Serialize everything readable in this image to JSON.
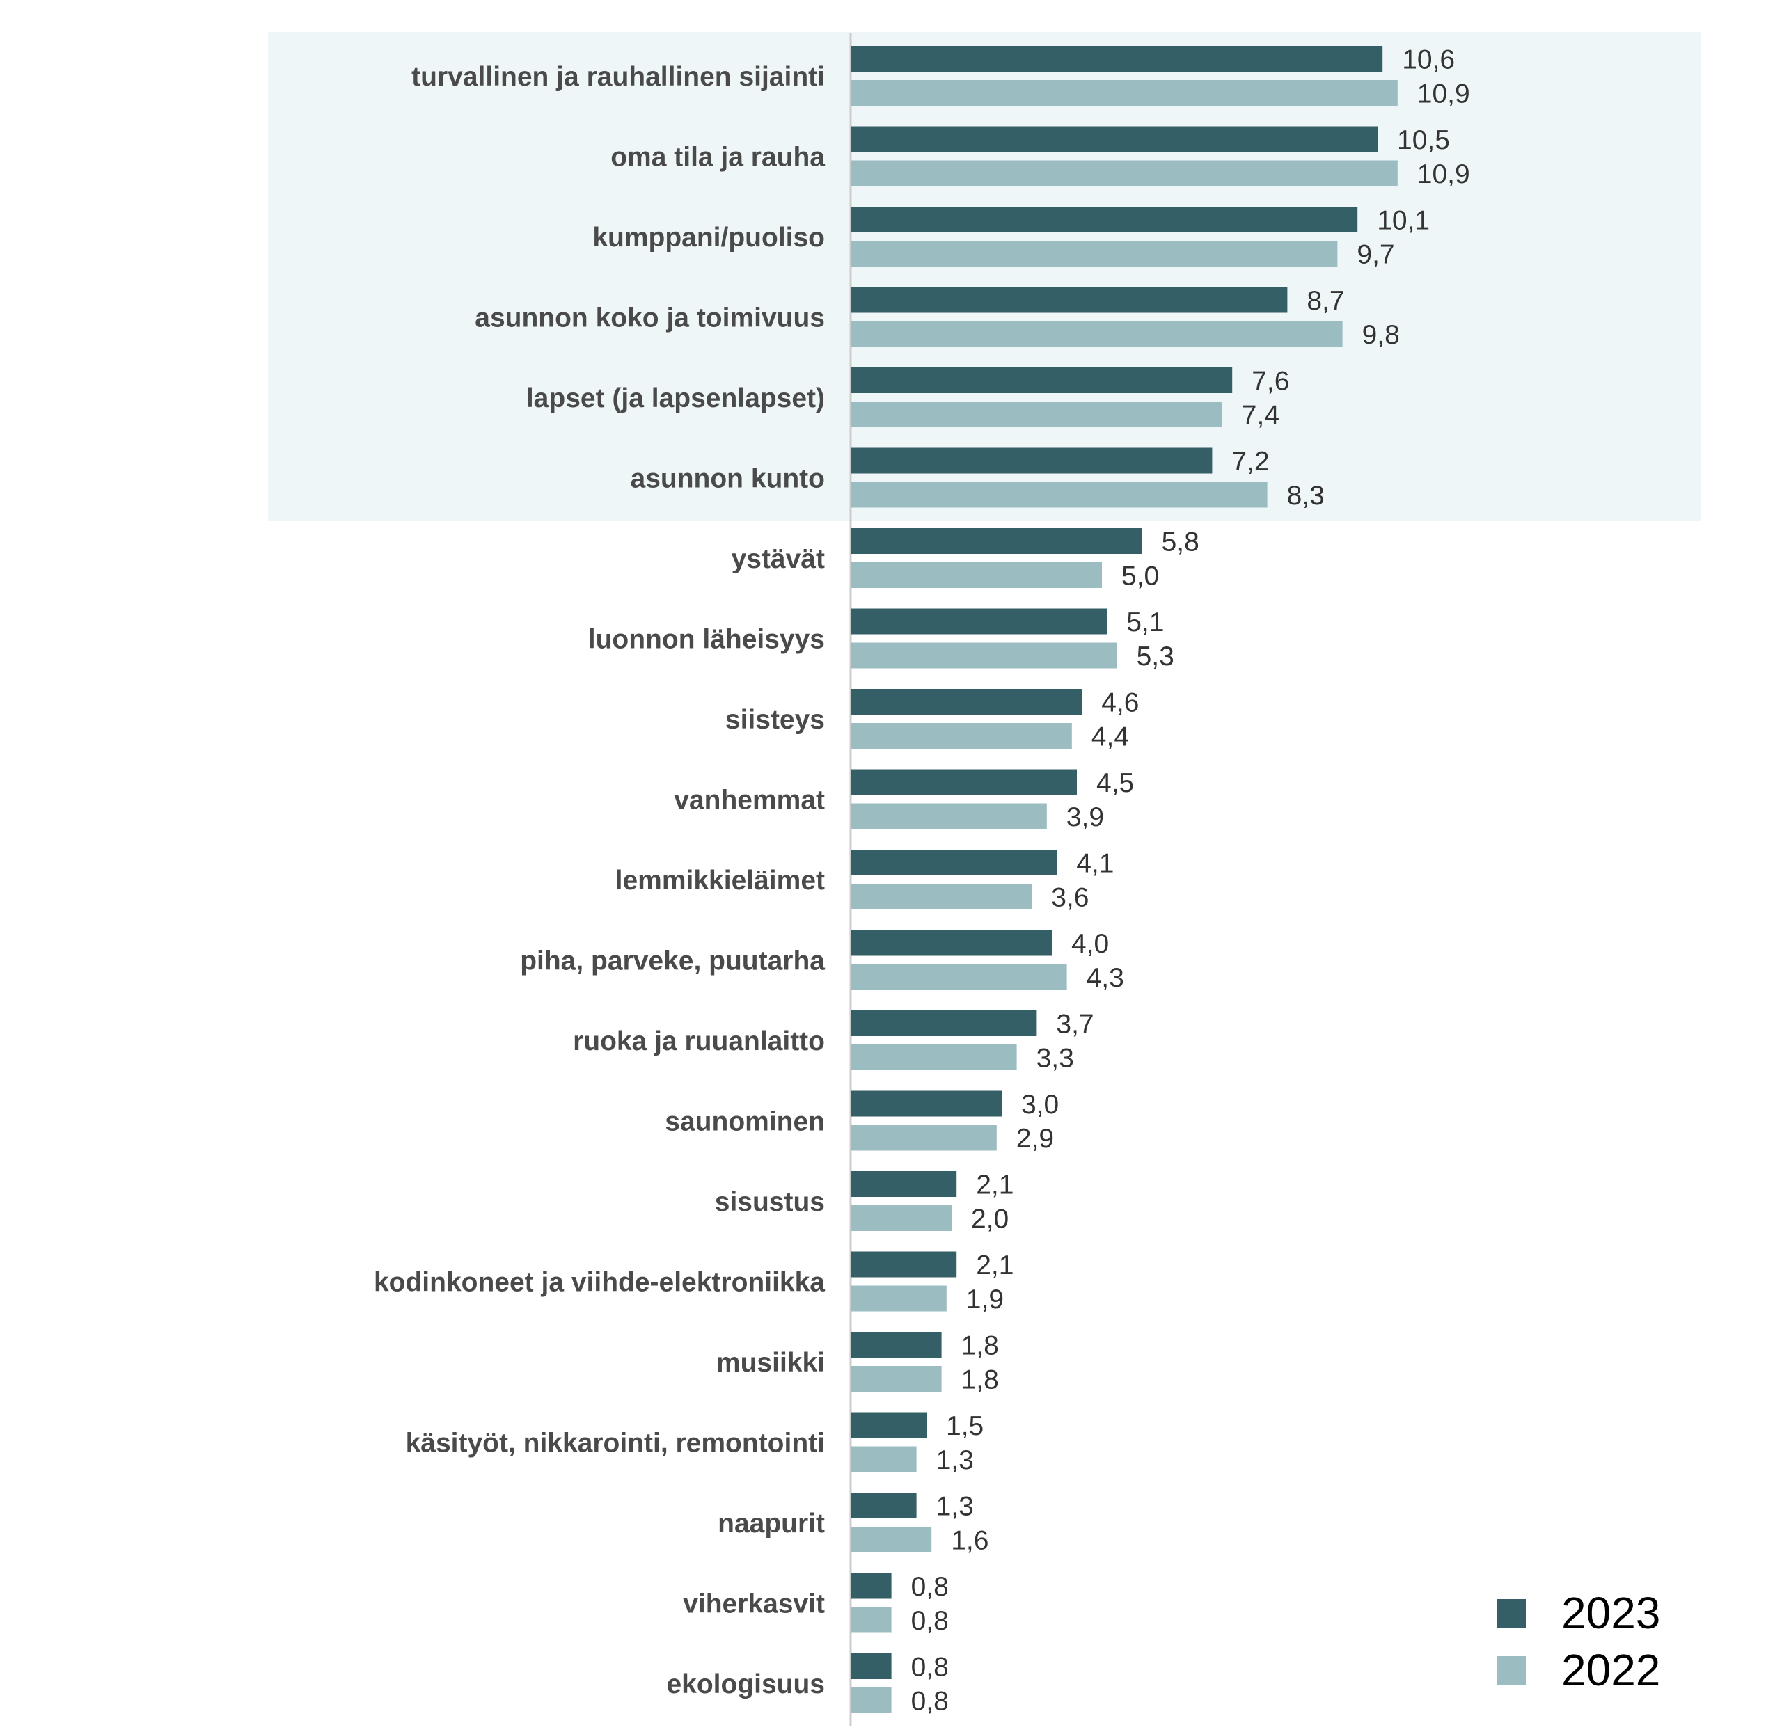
{
  "chart_data": {
    "type": "bar",
    "orientation": "horizontal",
    "categories": [
      "turvallinen ja rauhallinen sijainti",
      "oma tila ja rauha",
      "kumppani/puoliso",
      "asunnon koko ja toimivuus",
      "lapset (ja lapsenlapset)",
      "asunnon kunto",
      "ystävät",
      "luonnon läheisyys",
      "siisteys",
      "vanhemmat",
      "lemmikkieläimet",
      "piha, parveke, puutarha",
      "ruoka ja ruuanlaitto",
      "saunominen",
      "sisustus",
      "kodinkoneet ja viihde-elektroniikka",
      "musiikki",
      "käsityöt, nikkarointi, remontointi",
      "naapurit",
      "viherkasvit",
      "ekologisuus"
    ],
    "series": [
      {
        "name": "2023",
        "color": "#355f66",
        "values": [
          10.6,
          10.5,
          10.1,
          8.7,
          7.6,
          7.2,
          5.8,
          5.1,
          4.6,
          4.5,
          4.1,
          4.0,
          3.7,
          3.0,
          2.1,
          2.1,
          1.8,
          1.5,
          1.3,
          0.8,
          0.8
        ],
        "labels": [
          "10,6",
          "10,5",
          "10,1",
          "8,7",
          "7,6",
          "7,2",
          "5,8",
          "5,1",
          "4,6",
          "4,5",
          "4,1",
          "4,0",
          "3,7",
          "3,0",
          "2,1",
          "2,1",
          "1,8",
          "1,5",
          "1,3",
          "0,8",
          "0,8"
        ]
      },
      {
        "name": "2022",
        "color": "#9bbcc0",
        "values": [
          10.9,
          10.9,
          9.7,
          9.8,
          7.4,
          8.3,
          5.0,
          5.3,
          4.4,
          3.9,
          3.6,
          4.3,
          3.3,
          2.9,
          2.0,
          1.9,
          1.8,
          1.3,
          1.6,
          0.8,
          0.8
        ],
        "labels": [
          "10,9",
          "10,9",
          "9,7",
          "9,8",
          "7,4",
          "8,3",
          "5,0",
          "5,3",
          "4,4",
          "3,9",
          "3,6",
          "4,3",
          "3,3",
          "2,9",
          "2,0",
          "1,9",
          "1,8",
          "1,3",
          "1,6",
          "0,8",
          "0,8"
        ]
      }
    ],
    "highlight": {
      "categories_count": 6,
      "color": "#eef6f8"
    },
    "axis_color": "#cccccc",
    "xlim": [
      0,
      11
    ],
    "grid": false,
    "legend": "bottom-right"
  }
}
